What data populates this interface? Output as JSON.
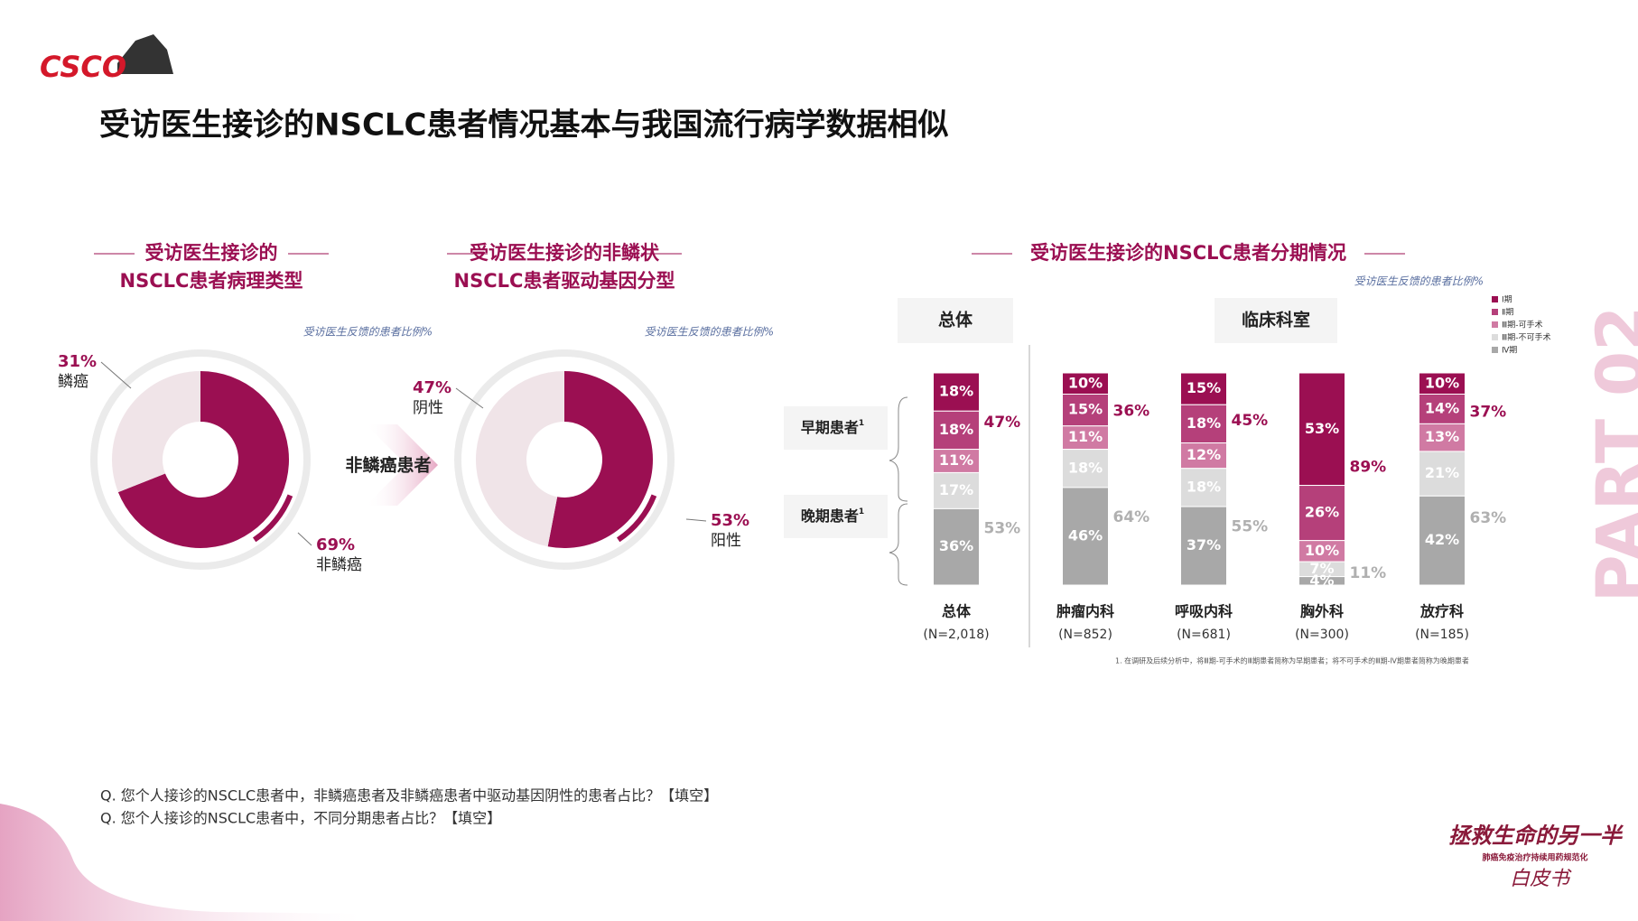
{
  "logo": "CSCO",
  "title": "受访医生接诊的NSCLC患者情况基本与我国流行病学数据相似",
  "arrow_label": "非鳞癌患者",
  "part": "PART 02",
  "questions": [
    "Q. 您个人接诊的NSCLC患者中，非鳞癌患者及非鳞癌患者中驱动基因阴性的患者占比？【填空】",
    "Q. 您个人接诊的NSCLC患者中，不同分期患者占比？【填空】"
  ],
  "footnote": "1. 在调研及后续分析中，将Ⅲ期-可手术的Ⅲ期患者简称为早期患者；将不可手术的Ⅲ期-Ⅳ期患者简称为晚期患者",
  "brand": [
    "拯救生命的另一半",
    "肺癌免疫治疗持续用药规范化",
    "白皮书"
  ],
  "chart_data": [
    {
      "type": "donut",
      "title": [
        "受访医生接诊的",
        "NSCLC患者病理类型"
      ],
      "subtitle": "受访医生反馈的患者比例%",
      "categories": [
        "鳞癌",
        "非鳞癌"
      ],
      "values": [
        31,
        69
      ],
      "value_labels": [
        "31%",
        "69%"
      ],
      "colors": [
        "#f0e4e8",
        "#9b0f52"
      ]
    },
    {
      "type": "donut",
      "title": [
        "受访医生接诊的非鳞状",
        "NSCLC患者驱动基因分型"
      ],
      "subtitle": "受访医生反馈的患者比例%",
      "categories": [
        "阴性",
        "阳性"
      ],
      "values": [
        47,
        53
      ],
      "value_labels": [
        "47%",
        "53%"
      ],
      "colors": [
        "#f0e4e8",
        "#9b0f52"
      ]
    },
    {
      "type": "stacked_bar",
      "title": [
        "受访医生接诊的NSCLC患者分期情况"
      ],
      "subtitle": "受访医生反馈的患者比例%",
      "panels": [
        "总体",
        "临床科室"
      ],
      "categories": [
        "总体",
        "肿瘤内科",
        "呼吸内科",
        "胸外科",
        "放疗科"
      ],
      "sample_sizes": [
        "(N=2,018)",
        "(N=852)",
        "(N=681)",
        "(N=300)",
        "(N=185)"
      ],
      "ylim": [
        0,
        100
      ],
      "series": [
        {
          "name": "Ⅰ期",
          "color": "#9b0f52",
          "values": [
            18,
            10,
            15,
            53,
            10
          ],
          "value_labels": [
            "18%",
            "10%",
            "15%",
            "53%",
            "10%"
          ]
        },
        {
          "name": "Ⅱ期",
          "color": "#b5407a",
          "values": [
            18,
            15,
            18,
            26,
            14
          ],
          "value_labels": [
            "18%",
            "15%",
            "18%",
            "26%",
            "14%"
          ]
        },
        {
          "name": "Ⅲ期-可手术",
          "color": "#d07aa3",
          "values": [
            11,
            11,
            12,
            10,
            13
          ],
          "value_labels": [
            "11%",
            "11%",
            "12%",
            "10%",
            "13%"
          ]
        },
        {
          "name": "Ⅲ期-不可手术",
          "color": "#dcdcdc",
          "values": [
            17,
            18,
            18,
            7,
            21
          ],
          "value_labels": [
            "17%",
            "18%",
            "18%",
            "7%",
            "21%"
          ]
        },
        {
          "name": "Ⅳ期",
          "color": "#a8a8a8",
          "values": [
            36,
            46,
            37,
            4,
            42
          ],
          "value_labels": [
            "36%",
            "46%",
            "37%",
            "4%",
            "42%"
          ]
        }
      ],
      "groups": [
        {
          "name": "早期患者",
          "note": "1",
          "color": "#9b0f52",
          "values": [
            47,
            36,
            45,
            89,
            37
          ],
          "value_labels": [
            "47%",
            "36%",
            "45%",
            "89%",
            "37%"
          ]
        },
        {
          "name": "晚期患者",
          "note": "1",
          "color": "#b0b0b0",
          "values": [
            53,
            64,
            55,
            11,
            63
          ],
          "value_labels": [
            "53%",
            "64%",
            "55%",
            "11%",
            "63%"
          ]
        }
      ]
    }
  ]
}
